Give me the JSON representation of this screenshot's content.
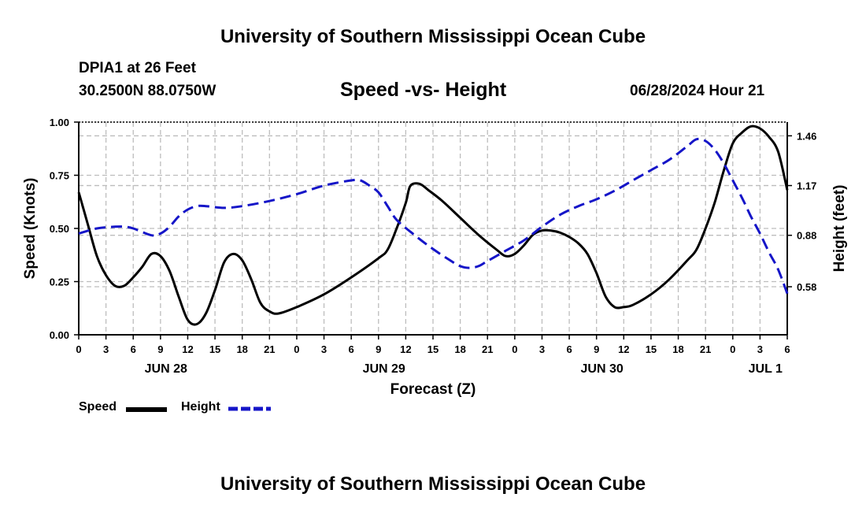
{
  "header": {
    "title": "University of Southern Mississippi Ocean Cube",
    "station": "DPIA1 at 26 Feet",
    "coords": "30.2500N  88.0750W",
    "subtitle": "Speed -vs- Height",
    "datetime": "06/28/2024 Hour 21"
  },
  "footer": {
    "title": "University of Southern Mississippi Ocean Cube"
  },
  "legend": {
    "speed_label": "Speed",
    "height_label": "Height"
  },
  "colors": {
    "speed": "#000000",
    "height": "#1515c8",
    "grid": "#bdbdbd"
  },
  "chart_data": {
    "type": "line",
    "title": "Speed -vs- Height",
    "xlabel": "Forecast (Z)",
    "ylabel": "Speed (Knots)",
    "y2label": "Height (feet)",
    "x_hours_range": [
      0,
      78
    ],
    "x_tick_step_hours": 3,
    "x_tick_labels": [
      "0",
      "3",
      "6",
      "9",
      "12",
      "15",
      "18",
      "21",
      "0",
      "3",
      "6",
      "9",
      "12",
      "15",
      "18",
      "21",
      "0",
      "3",
      "6",
      "9",
      "12",
      "15",
      "18",
      "21",
      "0",
      "3",
      "6"
    ],
    "date_labels": [
      {
        "label": "JUN 28",
        "hour": 9.6
      },
      {
        "label": "JUN 29",
        "hour": 33.6
      },
      {
        "label": "JUN 30",
        "hour": 57.6
      },
      {
        "label": "JUL 1",
        "hour": 75.6
      }
    ],
    "ylim": [
      0,
      1
    ],
    "y_ticks": [
      "0.00",
      "0.25",
      "0.50",
      "0.75",
      "1.00"
    ],
    "y2lim": [
      0.3,
      1.54
    ],
    "y2_ticks": [
      "0.58",
      "0.88",
      "1.17",
      "1.46"
    ],
    "grid": true,
    "series": [
      {
        "name": "Speed",
        "axis": "left",
        "style": "solid",
        "points": [
          [
            0,
            0.67
          ],
          [
            1,
            0.52
          ],
          [
            2,
            0.37
          ],
          [
            3,
            0.28
          ],
          [
            4,
            0.23
          ],
          [
            5,
            0.23
          ],
          [
            6,
            0.27
          ],
          [
            7,
            0.32
          ],
          [
            8,
            0.38
          ],
          [
            9,
            0.37
          ],
          [
            10,
            0.3
          ],
          [
            11,
            0.18
          ],
          [
            12,
            0.07
          ],
          [
            13,
            0.05
          ],
          [
            14,
            0.1
          ],
          [
            15,
            0.21
          ],
          [
            16,
            0.34
          ],
          [
            17,
            0.38
          ],
          [
            18,
            0.35
          ],
          [
            19,
            0.26
          ],
          [
            20,
            0.15
          ],
          [
            21,
            0.11
          ],
          [
            22,
            0.1
          ],
          [
            24,
            0.13
          ],
          [
            27,
            0.19
          ],
          [
            30,
            0.27
          ],
          [
            33,
            0.36
          ],
          [
            34,
            0.4
          ],
          [
            35,
            0.5
          ],
          [
            36,
            0.62
          ],
          [
            36.5,
            0.7
          ],
          [
            37.5,
            0.71
          ],
          [
            38.5,
            0.68
          ],
          [
            40,
            0.63
          ],
          [
            42,
            0.55
          ],
          [
            44,
            0.47
          ],
          [
            46,
            0.4
          ],
          [
            47,
            0.37
          ],
          [
            48,
            0.38
          ],
          [
            49,
            0.42
          ],
          [
            50,
            0.47
          ],
          [
            51,
            0.49
          ],
          [
            52,
            0.49
          ],
          [
            53,
            0.48
          ],
          [
            54,
            0.46
          ],
          [
            55,
            0.43
          ],
          [
            56,
            0.38
          ],
          [
            57,
            0.29
          ],
          [
            58,
            0.18
          ],
          [
            59,
            0.13
          ],
          [
            60,
            0.13
          ],
          [
            61,
            0.14
          ],
          [
            63,
            0.19
          ],
          [
            65,
            0.26
          ],
          [
            67,
            0.35
          ],
          [
            68,
            0.4
          ],
          [
            69,
            0.5
          ],
          [
            70,
            0.62
          ],
          [
            71,
            0.77
          ],
          [
            72,
            0.9
          ],
          [
            73,
            0.95
          ],
          [
            74,
            0.98
          ],
          [
            75,
            0.97
          ],
          [
            76,
            0.93
          ],
          [
            77,
            0.86
          ],
          [
            78,
            0.68
          ]
        ]
      },
      {
        "name": "Height",
        "axis": "right",
        "style": "dashed",
        "points": [
          [
            0,
            0.89
          ],
          [
            2,
            0.92
          ],
          [
            4,
            0.93
          ],
          [
            5,
            0.93
          ],
          [
            6,
            0.92
          ],
          [
            8,
            0.88
          ],
          [
            9,
            0.89
          ],
          [
            10,
            0.93
          ],
          [
            11,
            0.99
          ],
          [
            12,
            1.03
          ],
          [
            13,
            1.05
          ],
          [
            14,
            1.05
          ],
          [
            16,
            1.04
          ],
          [
            18,
            1.05
          ],
          [
            21,
            1.08
          ],
          [
            24,
            1.12
          ],
          [
            27,
            1.17
          ],
          [
            30,
            1.2
          ],
          [
            31,
            1.2
          ],
          [
            32,
            1.17
          ],
          [
            33,
            1.13
          ],
          [
            34,
            1.05
          ],
          [
            35,
            0.97
          ],
          [
            37,
            0.88
          ],
          [
            39,
            0.8
          ],
          [
            41,
            0.73
          ],
          [
            42,
            0.7
          ],
          [
            43,
            0.69
          ],
          [
            44,
            0.7
          ],
          [
            45,
            0.73
          ],
          [
            47,
            0.79
          ],
          [
            49,
            0.85
          ],
          [
            51,
            0.93
          ],
          [
            53,
            1.0
          ],
          [
            55,
            1.05
          ],
          [
            57,
            1.09
          ],
          [
            59,
            1.14
          ],
          [
            61,
            1.2
          ],
          [
            63,
            1.26
          ],
          [
            65,
            1.32
          ],
          [
            67,
            1.4
          ],
          [
            68,
            1.44
          ],
          [
            69,
            1.43
          ],
          [
            70,
            1.38
          ],
          [
            71,
            1.3
          ],
          [
            72,
            1.2
          ],
          [
            73,
            1.1
          ],
          [
            74,
            0.99
          ],
          [
            75,
            0.89
          ],
          [
            76,
            0.78
          ],
          [
            77,
            0.68
          ],
          [
            78,
            0.54
          ]
        ]
      }
    ]
  }
}
